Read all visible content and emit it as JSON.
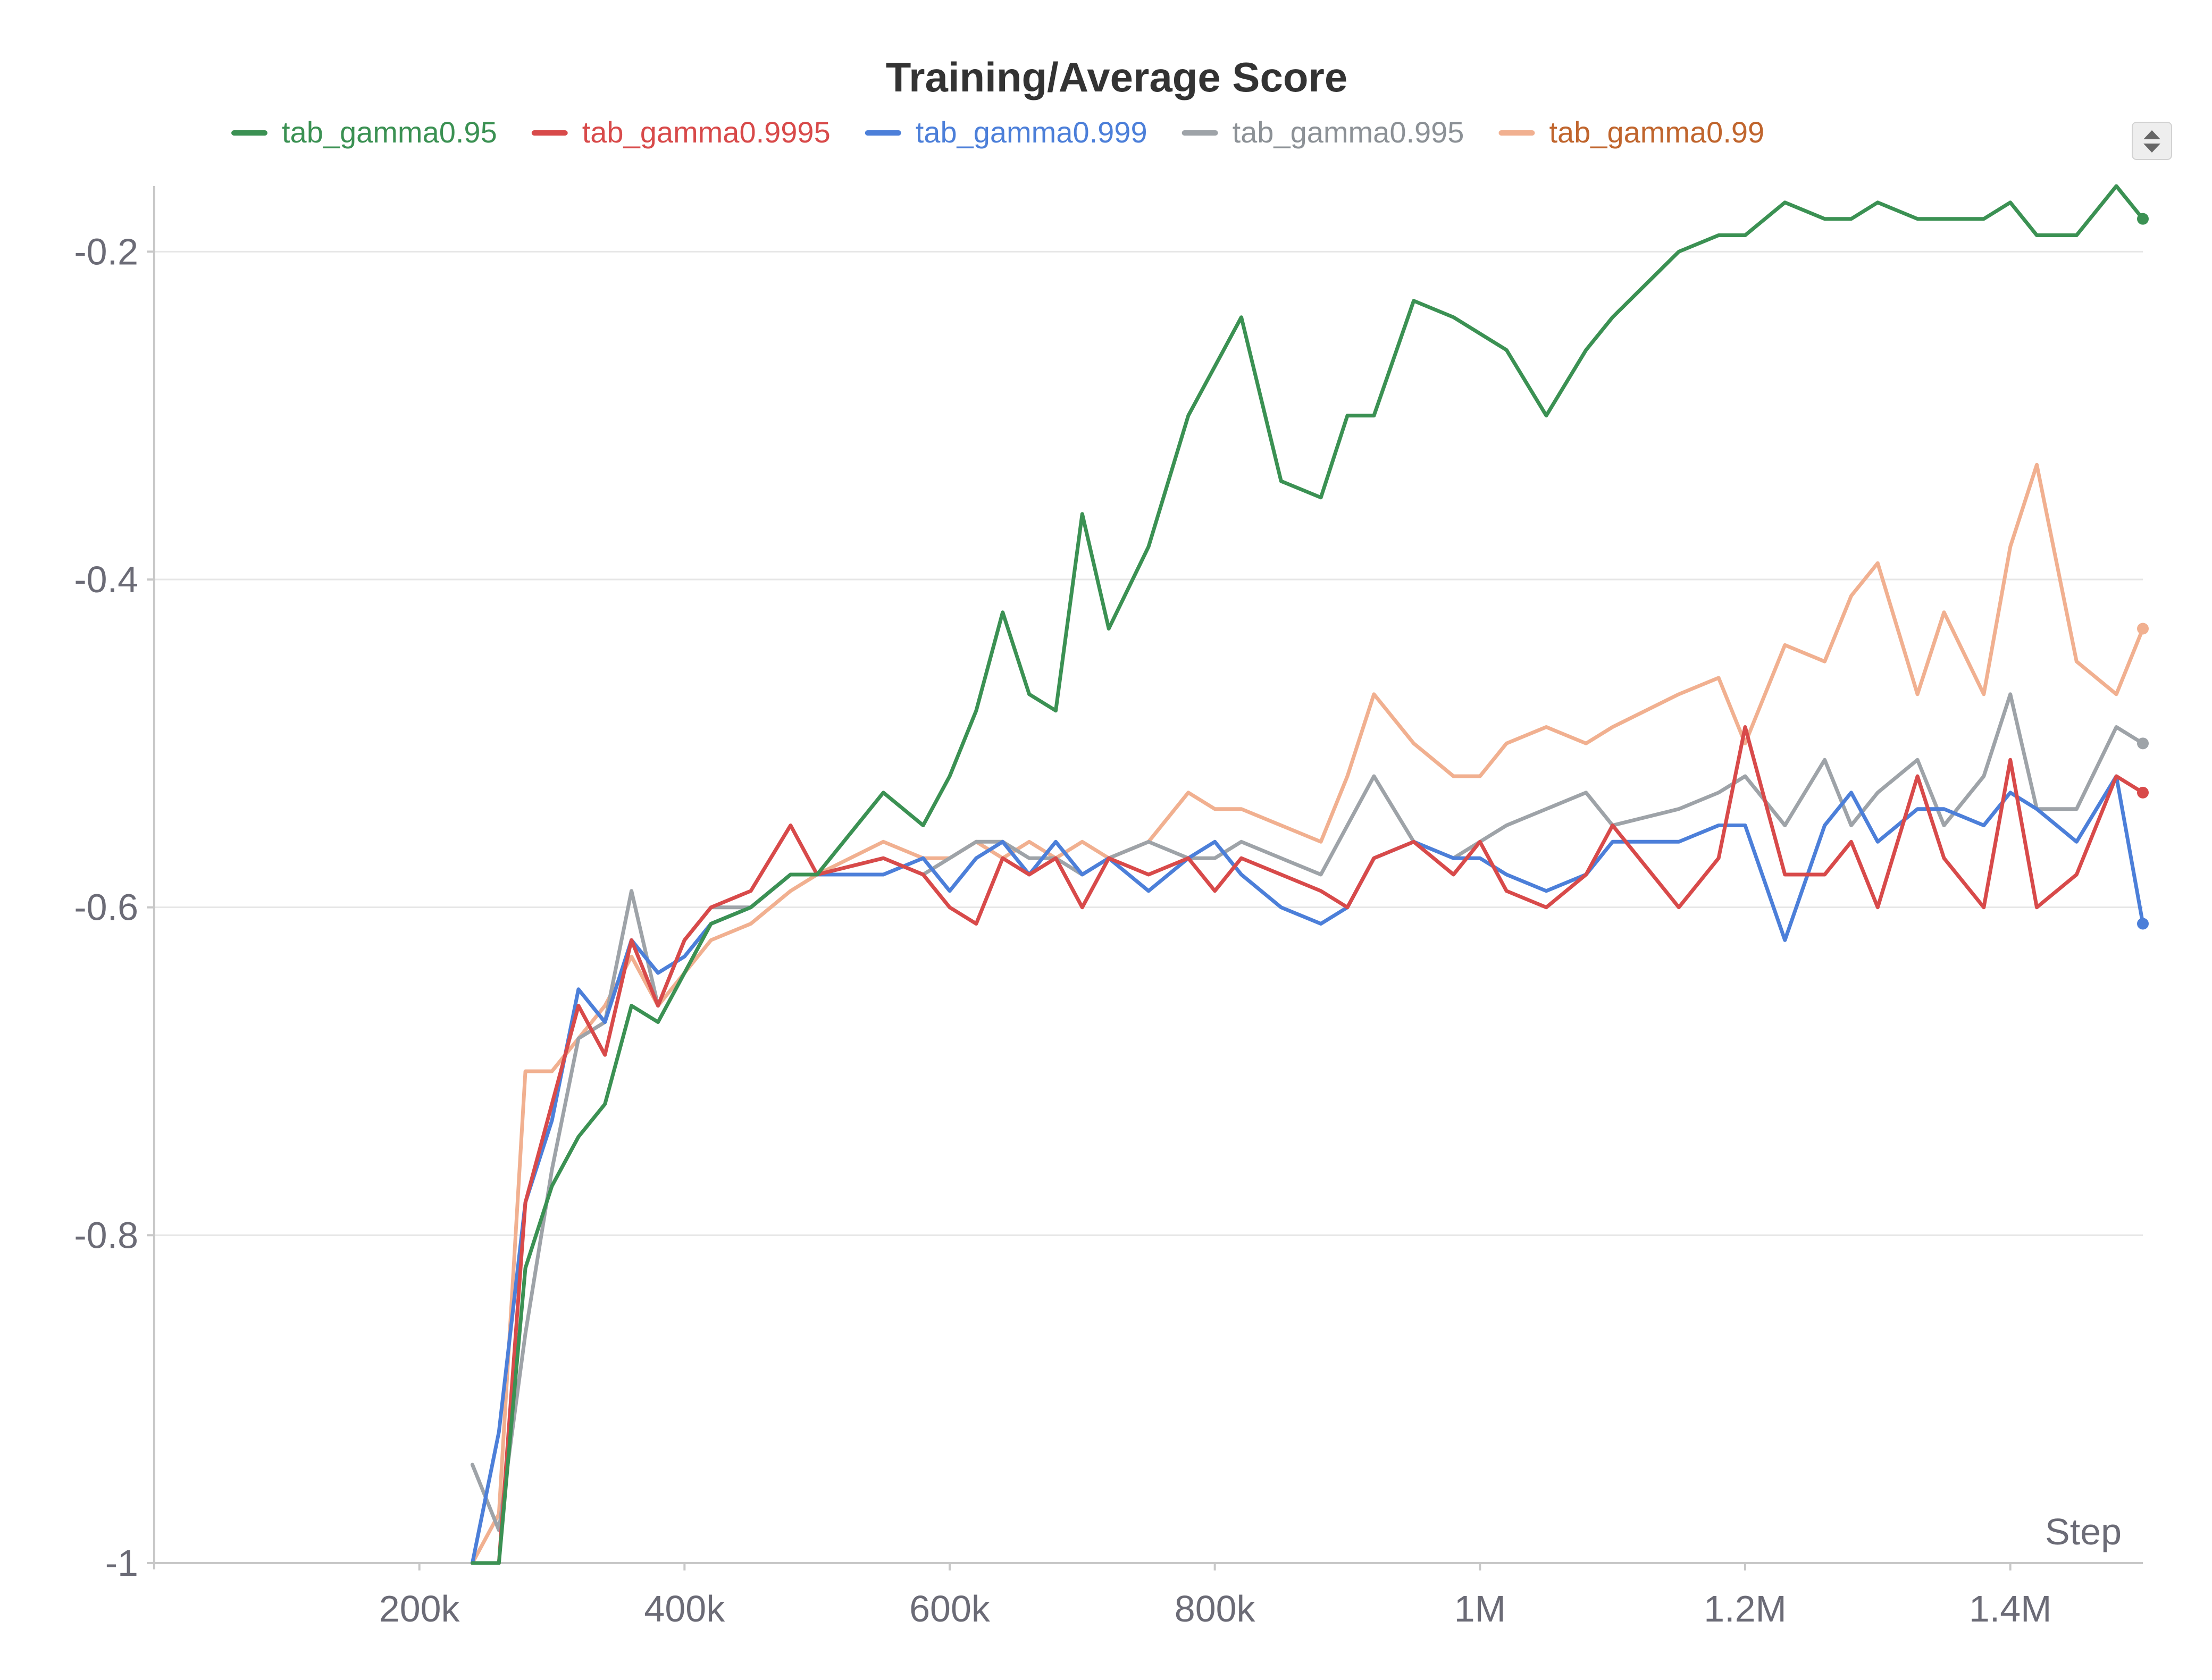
{
  "chart_data": {
    "type": "line",
    "title": "Training/Average Score",
    "xlabel": "Step",
    "ylabel": "",
    "xlim": [
      0,
      1500000
    ],
    "ylim": [
      -1,
      -0.16
    ],
    "grid": true,
    "legend_position": "top",
    "x_ticks": [
      200000,
      400000,
      600000,
      800000,
      1000000,
      1200000,
      1400000
    ],
    "x_tick_labels": [
      "200k",
      "400k",
      "600k",
      "800k",
      "1M",
      "1.2M",
      "1.4M"
    ],
    "y_ticks": [
      -0.2,
      -0.4,
      -0.6,
      -0.8,
      -1
    ],
    "y_tick_labels": [
      "-0.2",
      "-0.4",
      "-0.6",
      "-0.8",
      "-1"
    ],
    "x": [
      240000,
      260000,
      280000,
      300000,
      320000,
      340000,
      360000,
      380000,
      400000,
      420000,
      450000,
      480000,
      500000,
      550000,
      580000,
      600000,
      620000,
      640000,
      660000,
      680000,
      700000,
      720000,
      750000,
      780000,
      800000,
      820000,
      850000,
      880000,
      900000,
      920000,
      950000,
      980000,
      1000000,
      1020000,
      1050000,
      1080000,
      1100000,
      1150000,
      1180000,
      1200000,
      1230000,
      1260000,
      1280000,
      1300000,
      1330000,
      1350000,
      1380000,
      1400000,
      1420000,
      1450000,
      1480000,
      1500000
    ],
    "series": [
      {
        "name": "tab_gamma0.95",
        "color": "#3b9153",
        "values": [
          -1.0,
          -1.0,
          -0.82,
          -0.77,
          -0.74,
          -0.72,
          -0.66,
          -0.67,
          -0.64,
          -0.61,
          -0.6,
          -0.58,
          -0.58,
          -0.53,
          -0.55,
          -0.52,
          -0.48,
          -0.42,
          -0.47,
          -0.48,
          -0.36,
          -0.43,
          -0.38,
          -0.3,
          -0.27,
          -0.24,
          -0.34,
          -0.35,
          -0.3,
          -0.3,
          -0.23,
          -0.24,
          -0.25,
          -0.26,
          -0.3,
          -0.26,
          -0.24,
          -0.2,
          -0.19,
          -0.19,
          -0.17,
          -0.18,
          -0.18,
          -0.17,
          -0.18,
          -0.18,
          -0.18,
          -0.17,
          -0.19,
          -0.19,
          -0.16,
          -0.18
        ]
      },
      {
        "name": "tab_gamma0.9995",
        "color": "#d84a4a",
        "values": [
          -1.0,
          -1.0,
          -0.78,
          -0.72,
          -0.66,
          -0.69,
          -0.62,
          -0.66,
          -0.62,
          -0.6,
          -0.59,
          -0.55,
          -0.58,
          -0.57,
          -0.58,
          -0.6,
          -0.61,
          -0.57,
          -0.58,
          -0.57,
          -0.6,
          -0.57,
          -0.58,
          -0.57,
          -0.59,
          -0.57,
          -0.58,
          -0.59,
          -0.6,
          -0.57,
          -0.56,
          -0.58,
          -0.56,
          -0.59,
          -0.6,
          -0.58,
          -0.55,
          -0.6,
          -0.57,
          -0.49,
          -0.58,
          -0.58,
          -0.56,
          -0.6,
          -0.52,
          -0.57,
          -0.6,
          -0.51,
          -0.6,
          -0.58,
          -0.52,
          -0.53
        ]
      },
      {
        "name": "tab_gamma0.999",
        "color": "#4c7fd9",
        "values": [
          -1.0,
          -0.92,
          -0.78,
          -0.73,
          -0.65,
          -0.67,
          -0.62,
          -0.64,
          -0.63,
          -0.61,
          -0.6,
          -0.58,
          -0.58,
          -0.58,
          -0.57,
          -0.59,
          -0.57,
          -0.56,
          -0.58,
          -0.56,
          -0.58,
          -0.57,
          -0.59,
          -0.57,
          -0.56,
          -0.58,
          -0.6,
          -0.61,
          -0.6,
          -0.57,
          -0.56,
          -0.57,
          -0.57,
          -0.58,
          -0.59,
          -0.58,
          -0.56,
          -0.56,
          -0.55,
          -0.55,
          -0.62,
          -0.55,
          -0.53,
          -0.56,
          -0.54,
          -0.54,
          -0.55,
          -0.53,
          -0.54,
          -0.56,
          -0.52,
          -0.61
        ]
      },
      {
        "name": "tab_gamma0.995",
        "color": "#9ea3a8",
        "values": [
          -0.94,
          -0.98,
          -0.86,
          -0.76,
          -0.68,
          -0.67,
          -0.59,
          -0.66,
          -0.62,
          -0.6,
          -0.6,
          -0.58,
          -0.58,
          -0.57,
          -0.58,
          -0.57,
          -0.56,
          -0.56,
          -0.57,
          -0.57,
          -0.58,
          -0.57,
          -0.56,
          -0.57,
          -0.57,
          -0.56,
          -0.57,
          -0.58,
          -0.55,
          -0.52,
          -0.56,
          -0.57,
          -0.56,
          -0.55,
          -0.54,
          -0.53,
          -0.55,
          -0.54,
          -0.53,
          -0.52,
          -0.55,
          -0.51,
          -0.55,
          -0.53,
          -0.51,
          -0.55,
          -0.52,
          -0.47,
          -0.54,
          -0.54,
          -0.49,
          -0.5
        ]
      },
      {
        "name": "tab_gamma0.99",
        "color": "#f1b090",
        "values": [
          -1.0,
          -0.97,
          -0.7,
          -0.7,
          -0.68,
          -0.66,
          -0.63,
          -0.66,
          -0.64,
          -0.62,
          -0.61,
          -0.59,
          -0.58,
          -0.56,
          -0.57,
          -0.57,
          -0.56,
          -0.57,
          -0.56,
          -0.57,
          -0.56,
          -0.57,
          -0.56,
          -0.53,
          -0.54,
          -0.54,
          -0.55,
          -0.56,
          -0.52,
          -0.47,
          -0.5,
          -0.52,
          -0.52,
          -0.5,
          -0.49,
          -0.5,
          -0.49,
          -0.47,
          -0.46,
          -0.5,
          -0.44,
          -0.45,
          -0.41,
          -0.39,
          -0.47,
          -0.42,
          -0.47,
          -0.38,
          -0.33,
          -0.45,
          -0.47,
          -0.43
        ]
      }
    ]
  },
  "legend_scroll_icon": "up-down-arrows-icon"
}
